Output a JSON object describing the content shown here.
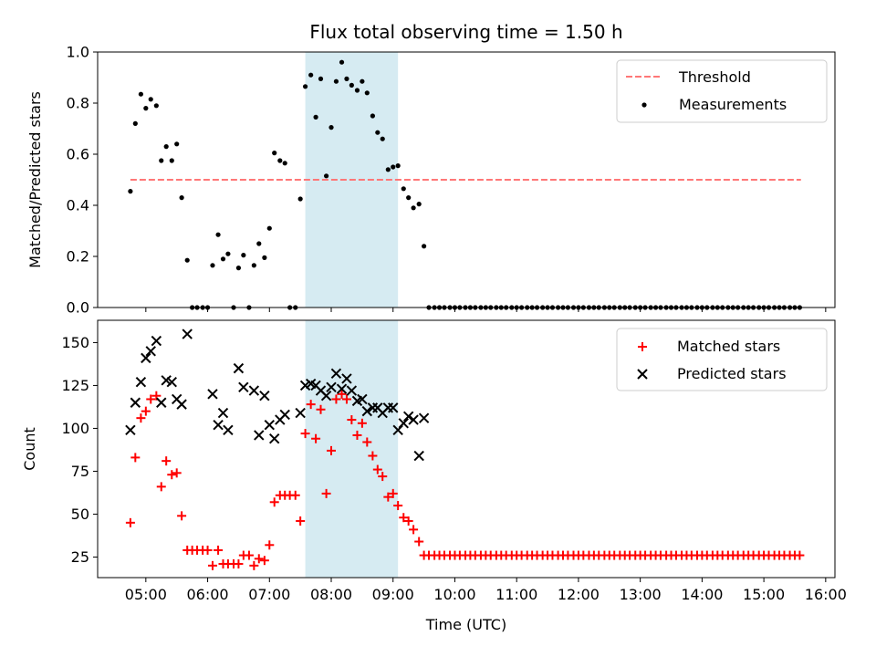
{
  "title": "Flux total observing time = 1.50 h",
  "colors": {
    "threshold": "#ff7777",
    "measurements": "#000000",
    "matched": "#ff0000",
    "predicted": "#000000",
    "span": "#add8e6"
  },
  "chart_data": [
    {
      "type": "scatter",
      "ylabel": "Matched/Predicted stars",
      "xlim": [
        4.22,
        16.15
      ],
      "ylim": [
        0,
        1.0
      ],
      "yticks": [
        0.0,
        0.2,
        0.4,
        0.6,
        0.8,
        1.0
      ],
      "ytick_labels": [
        "0.0",
        "0.2",
        "0.4",
        "0.6",
        "0.8",
        "1.0"
      ],
      "shaded_span": [
        7.58,
        9.08
      ],
      "threshold": {
        "name": "Threshold",
        "y": 0.5,
        "x_range": [
          4.75,
          15.6
        ],
        "style": "dashed"
      },
      "series": [
        {
          "name": "Measurements",
          "x": [
            4.75,
            4.83,
            4.92,
            5.0,
            5.08,
            5.17,
            5.25,
            5.33,
            5.42,
            5.5,
            5.58,
            5.67,
            5.75,
            5.83,
            5.92,
            6.0,
            6.08,
            6.17,
            6.25,
            6.33,
            6.42,
            6.5,
            6.58,
            6.67,
            6.75,
            6.83,
            6.92,
            7.0,
            7.08,
            7.17,
            7.25,
            7.33,
            7.42,
            7.5,
            7.58,
            7.67,
            7.75,
            7.83,
            7.92,
            8.0,
            8.08,
            8.17,
            8.25,
            8.33,
            8.42,
            8.5,
            8.58,
            8.67,
            8.75,
            8.83,
            8.92,
            9.0,
            9.08,
            9.17,
            9.25,
            9.33,
            9.42,
            9.5,
            9.58,
            9.67,
            9.75,
            9.83,
            9.92,
            10.0,
            10.08,
            10.17,
            10.25,
            10.33,
            10.42,
            10.5,
            10.58,
            10.67,
            10.75,
            10.83,
            10.92,
            11.0,
            11.08,
            11.17,
            11.25,
            11.33,
            11.42,
            11.5,
            11.58,
            11.67,
            11.75,
            11.83,
            11.92,
            12.0,
            12.08,
            12.17,
            12.25,
            12.33,
            12.42,
            12.5,
            12.58,
            12.67,
            12.75,
            12.83,
            12.92,
            13.0,
            13.08,
            13.17,
            13.25,
            13.33,
            13.42,
            13.5,
            13.58,
            13.67,
            13.75,
            13.83,
            13.92,
            14.0,
            14.08,
            14.17,
            14.25,
            14.33,
            14.42,
            14.5,
            14.58,
            14.67,
            14.75,
            14.83,
            14.92,
            15.0,
            15.08,
            15.17,
            15.25,
            15.33,
            15.42,
            15.5,
            15.58
          ],
          "y": [
            0.455,
            0.72,
            0.835,
            0.78,
            0.815,
            0.79,
            0.575,
            0.63,
            0.575,
            0.64,
            0.43,
            0.185,
            0.0,
            0.0,
            0.0,
            0.0,
            0.165,
            0.285,
            0.19,
            0.21,
            0.0,
            0.155,
            0.205,
            0.0,
            0.165,
            0.25,
            0.195,
            0.31,
            0.605,
            0.575,
            0.565,
            0.0,
            0.0,
            0.425,
            0.865,
            0.91,
            0.745,
            0.895,
            0.515,
            0.705,
            0.885,
            0.96,
            0.895,
            0.87,
            0.85,
            0.885,
            0.84,
            0.75,
            0.685,
            0.66,
            0.54,
            0.55,
            0.555,
            0.465,
            0.43,
            0.39,
            0.405,
            0.24,
            0.0,
            0.0,
            0.0,
            0.0,
            0.0,
            0.0,
            0.0,
            0.0,
            0.0,
            0.0,
            0.0,
            0.0,
            0.0,
            0.0,
            0.0,
            0.0,
            0.0,
            0.0,
            0.0,
            0.0,
            0.0,
            0.0,
            0.0,
            0.0,
            0.0,
            0.0,
            0.0,
            0.0,
            0.0,
            0.0,
            0.0,
            0.0,
            0.0,
            0.0,
            0.0,
            0.0,
            0.0,
            0.0,
            0.0,
            0.0,
            0.0,
            0.0,
            0.0,
            0.0,
            0.0,
            0.0,
            0.0,
            0.0,
            0.0,
            0.0,
            0.0,
            0.0,
            0.0,
            0.0,
            0.0,
            0.0,
            0.0,
            0.0,
            0.0,
            0.0,
            0.0,
            0.0,
            0.0,
            0.0,
            0.0,
            0.0,
            0.0,
            0.0,
            0.0,
            0.0,
            0.0,
            0.0,
            0.0
          ]
        }
      ],
      "legend": [
        "Threshold",
        "Measurements"
      ],
      "legend_position": "top-right"
    },
    {
      "type": "scatter",
      "ylabel": "Count",
      "xlabel": "Time (UTC)",
      "xlim": [
        4.22,
        16.15
      ],
      "ylim": [
        13,
        163
      ],
      "yticks": [
        25,
        50,
        75,
        100,
        125,
        150
      ],
      "ytick_labels": [
        "25",
        "50",
        "75",
        "100",
        "125",
        "150"
      ],
      "xticks": [
        5,
        6,
        7,
        8,
        9,
        10,
        11,
        12,
        13,
        14,
        15,
        16
      ],
      "xtick_labels": [
        "05:00",
        "06:00",
        "07:00",
        "08:00",
        "09:00",
        "10:00",
        "11:00",
        "12:00",
        "13:00",
        "14:00",
        "15:00",
        "16:00"
      ],
      "shaded_span": [
        7.58,
        9.08
      ],
      "series": [
        {
          "name": "Matched stars",
          "marker": "+",
          "x": [
            4.75,
            4.83,
            4.92,
            5.0,
            5.08,
            5.17,
            5.25,
            5.33,
            5.42,
            5.5,
            5.58,
            5.67,
            5.75,
            5.83,
            5.92,
            6.0,
            6.08,
            6.17,
            6.25,
            6.33,
            6.42,
            6.5,
            6.58,
            6.67,
            6.75,
            6.83,
            6.92,
            7.0,
            7.08,
            7.17,
            7.25,
            7.33,
            7.42,
            7.5,
            7.58,
            7.67,
            7.75,
            7.83,
            7.92,
            8.0,
            8.08,
            8.17,
            8.25,
            8.33,
            8.42,
            8.5,
            8.58,
            8.67,
            8.75,
            8.83,
            8.92,
            9.0,
            9.08,
            9.17,
            9.25,
            9.33,
            9.42,
            9.5,
            9.58,
            9.67,
            9.75,
            9.83,
            9.92,
            10.0,
            10.08,
            10.17,
            10.25,
            10.33,
            10.42,
            10.5,
            10.58,
            10.67,
            10.75,
            10.83,
            10.92,
            11.0,
            11.08,
            11.17,
            11.25,
            11.33,
            11.42,
            11.5,
            11.58,
            11.67,
            11.75,
            11.83,
            11.92,
            12.0,
            12.08,
            12.17,
            12.25,
            12.33,
            12.42,
            12.5,
            12.58,
            12.67,
            12.75,
            12.83,
            12.92,
            13.0,
            13.08,
            13.17,
            13.25,
            13.33,
            13.42,
            13.5,
            13.58,
            13.67,
            13.75,
            13.83,
            13.92,
            14.0,
            14.08,
            14.17,
            14.25,
            14.33,
            14.42,
            14.5,
            14.58,
            14.67,
            14.75,
            14.83,
            14.92,
            15.0,
            15.08,
            15.17,
            15.25,
            15.33,
            15.42,
            15.5,
            15.58
          ],
          "y": [
            45,
            83,
            106,
            110,
            117,
            119,
            66,
            81,
            73,
            74,
            49,
            29,
            29,
            29,
            29,
            29,
            20,
            29,
            21,
            21,
            21,
            21,
            26,
            26,
            20,
            24,
            23,
            32,
            57,
            61,
            61,
            61,
            61,
            46,
            97,
            114,
            94,
            111,
            62,
            87,
            117,
            120,
            117,
            105,
            96,
            103,
            92,
            84,
            76,
            72,
            60,
            62,
            55,
            48,
            46,
            41,
            34,
            26,
            26,
            26,
            26,
            26,
            26,
            26,
            26,
            26,
            26,
            26,
            26,
            26,
            26,
            26,
            26,
            26,
            26,
            26,
            26,
            26,
            26,
            26,
            26,
            26,
            26,
            26,
            26,
            26,
            26,
            26,
            26,
            26,
            26,
            26,
            26,
            26,
            26,
            26,
            26,
            26,
            26,
            26,
            26,
            26,
            26,
            26,
            26,
            26,
            26,
            26,
            26,
            26,
            26,
            26,
            26,
            26,
            26,
            26,
            26,
            26,
            26,
            26,
            26,
            26,
            26,
            26,
            26,
            26,
            26,
            26,
            26,
            26,
            26
          ]
        },
        {
          "name": "Predicted stars",
          "marker": "x",
          "x": [
            4.75,
            4.83,
            4.92,
            5.0,
            5.08,
            5.17,
            5.25,
            5.33,
            5.42,
            5.5,
            5.58,
            5.67,
            6.08,
            6.17,
            6.25,
            6.33,
            6.5,
            6.58,
            6.75,
            6.83,
            6.92,
            7.0,
            7.08,
            7.17,
            7.25,
            7.5,
            7.58,
            7.67,
            7.75,
            7.83,
            7.92,
            8.0,
            8.08,
            8.17,
            8.25,
            8.33,
            8.42,
            8.5,
            8.58,
            8.67,
            8.75,
            8.83,
            8.92,
            9.0,
            9.08,
            9.17,
            9.25,
            9.33,
            9.42,
            9.5
          ],
          "y": [
            99,
            115,
            127,
            141,
            145,
            151,
            115,
            128,
            127,
            117,
            114,
            155,
            120,
            102,
            109,
            99,
            135,
            124,
            122,
            96,
            119,
            102,
            94,
            105,
            108,
            109,
            125,
            126,
            125,
            122,
            119,
            124,
            132,
            123,
            129,
            122,
            116,
            117,
            110,
            112,
            112,
            109,
            112,
            112,
            99,
            103,
            107,
            105,
            84,
            106
          ]
        }
      ],
      "legend": [
        "Matched stars",
        "Predicted stars"
      ],
      "legend_position": "top-right"
    }
  ]
}
